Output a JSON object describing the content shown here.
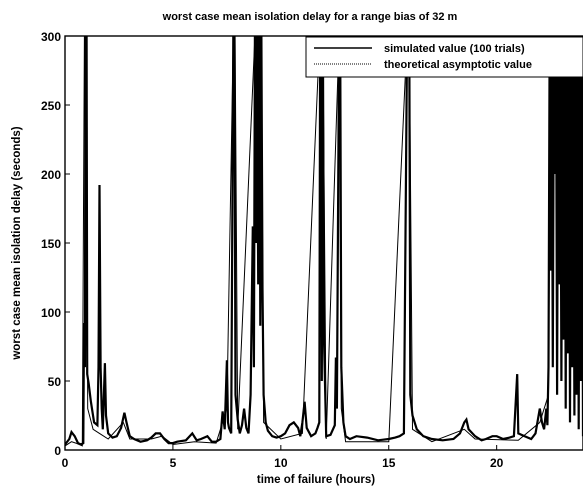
{
  "chart_data": {
    "type": "line",
    "title": "worst case mean isolation delay for a range bias of 32 m",
    "xlabel": "time of failure (hours)",
    "ylabel": "worst case mean isolation delay (seconds)",
    "xlim": [
      0,
      24
    ],
    "ylim": [
      0,
      300
    ],
    "x_ticks": [
      0,
      5,
      10,
      15,
      20
    ],
    "y_ticks": [
      0,
      50,
      100,
      150,
      200,
      250,
      300
    ],
    "grid": false,
    "legend_position": "top-right",
    "series": [
      {
        "name": "simulated value (100 trials)",
        "points": [
          [
            0.0,
            4
          ],
          [
            0.2,
            8
          ],
          [
            0.3,
            13
          ],
          [
            0.45,
            10
          ],
          [
            0.6,
            5
          ],
          [
            0.75,
            4
          ],
          [
            0.85,
            5
          ],
          [
            0.88,
            92
          ],
          [
            0.92,
            60
          ],
          [
            0.95,
            300
          ],
          [
            1.0,
            300
          ],
          [
            1.03,
            55
          ],
          [
            1.1,
            48
          ],
          [
            1.2,
            35
          ],
          [
            1.35,
            20
          ],
          [
            1.5,
            18
          ],
          [
            1.55,
            60
          ],
          [
            1.6,
            192
          ],
          [
            1.65,
            60
          ],
          [
            1.7,
            30
          ],
          [
            1.75,
            15
          ],
          [
            1.85,
            63
          ],
          [
            1.9,
            25
          ],
          [
            2.0,
            12
          ],
          [
            2.2,
            9
          ],
          [
            2.4,
            10
          ],
          [
            2.6,
            16
          ],
          [
            2.75,
            27
          ],
          [
            2.85,
            20
          ],
          [
            3.0,
            10
          ],
          [
            3.2,
            8
          ],
          [
            3.5,
            6
          ],
          [
            3.8,
            7
          ],
          [
            4.0,
            9
          ],
          [
            4.2,
            12
          ],
          [
            4.4,
            12
          ],
          [
            4.6,
            8
          ],
          [
            4.8,
            5
          ],
          [
            5.0,
            5
          ],
          [
            5.2,
            6
          ],
          [
            5.6,
            7
          ],
          [
            5.9,
            12
          ],
          [
            6.1,
            7
          ],
          [
            6.3,
            8
          ],
          [
            6.6,
            10
          ],
          [
            6.8,
            6
          ],
          [
            7.0,
            6
          ],
          [
            7.2,
            8
          ],
          [
            7.3,
            28
          ],
          [
            7.4,
            15
          ],
          [
            7.5,
            65
          ],
          [
            7.55,
            20
          ],
          [
            7.6,
            16
          ],
          [
            7.7,
            12
          ],
          [
            7.8,
            300
          ],
          [
            7.85,
            300
          ],
          [
            7.9,
            40
          ],
          [
            8.0,
            22
          ],
          [
            8.1,
            12
          ],
          [
            8.2,
            18
          ],
          [
            8.3,
            30
          ],
          [
            8.4,
            16
          ],
          [
            8.5,
            12
          ],
          [
            8.6,
            40
          ],
          [
            8.7,
            162
          ],
          [
            8.75,
            60
          ],
          [
            8.8,
            300
          ],
          [
            8.85,
            150
          ],
          [
            8.9,
            300
          ],
          [
            8.95,
            120
          ],
          [
            9.0,
            300
          ],
          [
            9.05,
            90
          ],
          [
            9.1,
            300
          ],
          [
            9.15,
            117
          ],
          [
            9.2,
            40
          ],
          [
            9.3,
            20
          ],
          [
            9.4,
            14
          ],
          [
            9.6,
            10
          ],
          [
            9.8,
            9
          ],
          [
            10.0,
            10
          ],
          [
            10.2,
            12
          ],
          [
            10.4,
            18
          ],
          [
            10.6,
            20
          ],
          [
            10.8,
            16
          ],
          [
            10.9,
            10
          ],
          [
            11.0,
            20
          ],
          [
            11.1,
            35
          ],
          [
            11.2,
            16
          ],
          [
            11.4,
            10
          ],
          [
            11.6,
            12
          ],
          [
            11.7,
            16
          ],
          [
            11.78,
            20
          ],
          [
            11.82,
            290
          ],
          [
            11.86,
            300
          ],
          [
            11.9,
            50
          ],
          [
            11.95,
            300
          ],
          [
            12.0,
            80
          ],
          [
            12.1,
            10
          ],
          [
            12.3,
            11
          ],
          [
            12.5,
            18
          ],
          [
            12.55,
            67
          ],
          [
            12.6,
            30
          ],
          [
            12.7,
            300
          ],
          [
            12.75,
            300
          ],
          [
            12.8,
            60
          ],
          [
            12.9,
            20
          ],
          [
            13.0,
            10
          ],
          [
            13.2,
            8
          ],
          [
            13.5,
            10
          ],
          [
            14.0,
            9
          ],
          [
            14.5,
            7
          ],
          [
            15.0,
            8
          ],
          [
            15.3,
            9
          ],
          [
            15.5,
            10
          ],
          [
            15.7,
            12
          ],
          [
            15.85,
            300
          ],
          [
            15.9,
            280
          ],
          [
            15.95,
            300
          ],
          [
            16.0,
            40
          ],
          [
            16.1,
            25
          ],
          [
            16.3,
            15
          ],
          [
            16.6,
            10
          ],
          [
            17.0,
            8
          ],
          [
            17.5,
            7
          ],
          [
            18.0,
            8
          ],
          [
            18.3,
            12
          ],
          [
            18.5,
            20
          ],
          [
            18.6,
            22
          ],
          [
            18.7,
            15
          ],
          [
            19.0,
            10
          ],
          [
            19.3,
            7
          ],
          [
            19.5,
            8
          ],
          [
            19.8,
            10
          ],
          [
            20.0,
            10
          ],
          [
            20.3,
            8
          ],
          [
            20.6,
            9
          ],
          [
            20.8,
            10
          ],
          [
            20.95,
            55
          ],
          [
            21.0,
            12
          ],
          [
            21.3,
            10
          ],
          [
            21.6,
            8
          ],
          [
            21.8,
            12
          ],
          [
            22.0,
            30
          ],
          [
            22.1,
            20
          ],
          [
            22.2,
            15
          ],
          [
            22.3,
            30
          ],
          [
            22.35,
            18
          ],
          [
            22.4,
            60
          ],
          [
            22.45,
            270
          ],
          [
            22.5,
            130
          ],
          [
            22.55,
            300
          ],
          [
            22.6,
            60
          ],
          [
            22.65,
            300
          ],
          [
            22.7,
            200
          ],
          [
            22.75,
            300
          ],
          [
            22.8,
            40
          ],
          [
            22.85,
            300
          ],
          [
            22.9,
            120
          ],
          [
            22.95,
            300
          ],
          [
            23.0,
            50
          ],
          [
            23.05,
            300
          ],
          [
            23.1,
            80
          ],
          [
            23.15,
            300
          ],
          [
            23.2,
            30
          ],
          [
            23.25,
            300
          ],
          [
            23.3,
            70
          ],
          [
            23.35,
            300
          ],
          [
            23.4,
            20
          ],
          [
            23.45,
            300
          ],
          [
            23.5,
            60
          ],
          [
            23.55,
            300
          ],
          [
            23.6,
            25
          ],
          [
            23.65,
            300
          ],
          [
            23.7,
            40
          ],
          [
            23.75,
            300
          ],
          [
            23.8,
            15
          ],
          [
            23.85,
            300
          ],
          [
            23.9,
            50
          ],
          [
            23.95,
            300
          ],
          [
            24.0,
            10
          ]
        ]
      },
      {
        "name": "theoretical asymptotic value",
        "points": [
          [
            0.0,
            3
          ],
          [
            0.3,
            6
          ],
          [
            0.5,
            5
          ],
          [
            0.8,
            3
          ],
          [
            0.9,
            300
          ],
          [
            0.98,
            300
          ],
          [
            1.05,
            30
          ],
          [
            1.3,
            15
          ],
          [
            1.6,
            12
          ],
          [
            2.0,
            8
          ],
          [
            2.7,
            20
          ],
          [
            3.0,
            8
          ],
          [
            4.0,
            8
          ],
          [
            4.5,
            10
          ],
          [
            5.0,
            4
          ],
          [
            6.0,
            6
          ],
          [
            7.0,
            5
          ],
          [
            7.5,
            30
          ],
          [
            7.8,
            300
          ],
          [
            7.88,
            300
          ],
          [
            8.0,
            15
          ],
          [
            8.8,
            300
          ],
          [
            9.1,
            300
          ],
          [
            9.2,
            20
          ],
          [
            10.0,
            8
          ],
          [
            11.0,
            12
          ],
          [
            11.8,
            300
          ],
          [
            11.95,
            300
          ],
          [
            12.1,
            8
          ],
          [
            12.7,
            300
          ],
          [
            12.8,
            30
          ],
          [
            13.0,
            6
          ],
          [
            15.0,
            6
          ],
          [
            15.85,
            300
          ],
          [
            15.95,
            300
          ],
          [
            16.1,
            15
          ],
          [
            17.0,
            6
          ],
          [
            18.5,
            15
          ],
          [
            19.0,
            8
          ],
          [
            21.0,
            7
          ],
          [
            22.0,
            20
          ],
          [
            22.4,
            40
          ],
          [
            22.5,
            300
          ],
          [
            24.0,
            300
          ]
        ]
      }
    ]
  },
  "colors": {
    "series_line": "#000000",
    "background": "#ffffff"
  }
}
